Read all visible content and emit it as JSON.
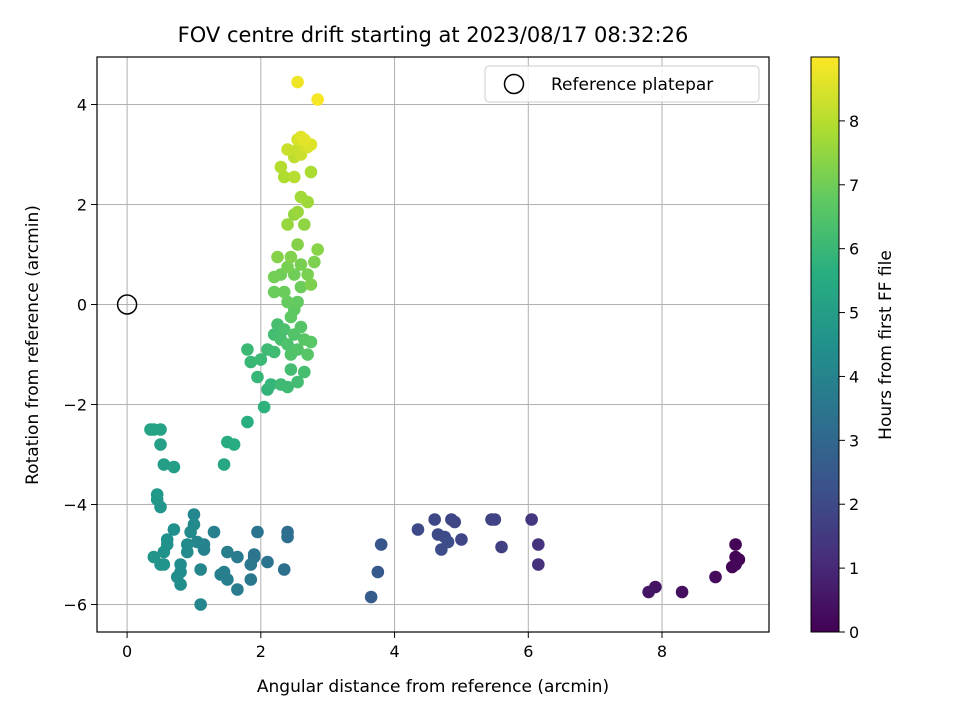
{
  "chart_data": {
    "type": "scatter",
    "title": "FOV centre drift starting at 2023/08/17 08:32:26",
    "xlabel": "Angular distance from reference (arcmin)",
    "ylabel": "Rotation from reference (arcmin)",
    "xlim": [
      -0.45,
      9.6
    ],
    "ylim": [
      -6.55,
      4.95
    ],
    "xticks": [
      0,
      2,
      4,
      6,
      8
    ],
    "yticks": [
      -6,
      -4,
      -2,
      0,
      2,
      4
    ],
    "grid": true,
    "legend": {
      "position": "top-right",
      "entries": [
        "Reference platepar"
      ]
    },
    "reference_point": {
      "x": 0,
      "y": 0,
      "label": "Reference platepar"
    },
    "colorbar": {
      "label": "Hours from first FF file",
      "range": [
        0,
        9
      ],
      "ticks": [
        0,
        1,
        2,
        3,
        4,
        5,
        6,
        7,
        8
      ],
      "colormap": "viridis"
    },
    "points": [
      {
        "x": 9.1,
        "y": -4.8,
        "t": 0.1
      },
      {
        "x": 9.1,
        "y": -5.05,
        "t": 0.1
      },
      {
        "x": 9.15,
        "y": -5.1,
        "t": 0.1
      },
      {
        "x": 9.05,
        "y": -5.25,
        "t": 0.1
      },
      {
        "x": 9.1,
        "y": -5.2,
        "t": 0.15
      },
      {
        "x": 8.8,
        "y": -5.45,
        "t": 0.25
      },
      {
        "x": 8.3,
        "y": -5.75,
        "t": 0.35
      },
      {
        "x": 7.9,
        "y": -5.65,
        "t": 0.45
      },
      {
        "x": 7.8,
        "y": -5.75,
        "t": 0.5
      },
      {
        "x": 6.05,
        "y": -4.3,
        "t": 1.4
      },
      {
        "x": 6.15,
        "y": -4.8,
        "t": 1.3
      },
      {
        "x": 6.15,
        "y": -5.2,
        "t": 1.25
      },
      {
        "x": 5.6,
        "y": -4.85,
        "t": 1.7
      },
      {
        "x": 5.45,
        "y": -4.3,
        "t": 1.75
      },
      {
        "x": 5.5,
        "y": -4.3,
        "t": 1.8
      },
      {
        "x": 4.85,
        "y": -4.3,
        "t": 1.9
      },
      {
        "x": 4.9,
        "y": -4.35,
        "t": 1.85
      },
      {
        "x": 4.6,
        "y": -4.3,
        "t": 1.95
      },
      {
        "x": 4.35,
        "y": -4.5,
        "t": 2.0
      },
      {
        "x": 4.65,
        "y": -4.6,
        "t": 2.0
      },
      {
        "x": 4.75,
        "y": -4.65,
        "t": 2.05
      },
      {
        "x": 4.8,
        "y": -4.75,
        "t": 2.1
      },
      {
        "x": 4.7,
        "y": -4.9,
        "t": 2.1
      },
      {
        "x": 5.0,
        "y": -4.7,
        "t": 1.9
      },
      {
        "x": 3.8,
        "y": -4.8,
        "t": 2.4
      },
      {
        "x": 3.75,
        "y": -5.35,
        "t": 2.5
      },
      {
        "x": 3.65,
        "y": -5.85,
        "t": 2.6
      },
      {
        "x": 2.4,
        "y": -4.55,
        "t": 3.2
      },
      {
        "x": 2.4,
        "y": -4.65,
        "t": 3.25
      },
      {
        "x": 2.35,
        "y": -5.3,
        "t": 3.3
      },
      {
        "x": 2.1,
        "y": -5.15,
        "t": 3.4
      },
      {
        "x": 1.9,
        "y": -5.05,
        "t": 3.5
      },
      {
        "x": 1.95,
        "y": -4.55,
        "t": 3.45
      },
      {
        "x": 1.9,
        "y": -5.0,
        "t": 3.5
      },
      {
        "x": 1.85,
        "y": -5.2,
        "t": 3.55
      },
      {
        "x": 1.85,
        "y": -5.5,
        "t": 3.6
      },
      {
        "x": 1.65,
        "y": -5.05,
        "t": 3.65
      },
      {
        "x": 1.65,
        "y": -5.7,
        "t": 3.7
      },
      {
        "x": 1.5,
        "y": -4.95,
        "t": 3.8
      },
      {
        "x": 1.45,
        "y": -5.35,
        "t": 3.85
      },
      {
        "x": 1.5,
        "y": -5.5,
        "t": 3.8
      },
      {
        "x": 1.4,
        "y": -5.4,
        "t": 3.85
      },
      {
        "x": 1.3,
        "y": -4.55,
        "t": 3.9
      },
      {
        "x": 1.15,
        "y": -4.8,
        "t": 4.0
      },
      {
        "x": 1.15,
        "y": -4.9,
        "t": 4.0
      },
      {
        "x": 1.1,
        "y": -5.3,
        "t": 4.05
      },
      {
        "x": 1.1,
        "y": -6.0,
        "t": 4.1
      },
      {
        "x": 1.05,
        "y": -4.75,
        "t": 4.1
      },
      {
        "x": 1.0,
        "y": -4.2,
        "t": 4.15
      },
      {
        "x": 1.0,
        "y": -4.4,
        "t": 4.2
      },
      {
        "x": 0.95,
        "y": -4.55,
        "t": 4.25
      },
      {
        "x": 0.9,
        "y": -4.8,
        "t": 4.3
      },
      {
        "x": 0.9,
        "y": -4.95,
        "t": 4.3
      },
      {
        "x": 0.8,
        "y": -5.2,
        "t": 4.35
      },
      {
        "x": 0.8,
        "y": -5.35,
        "t": 4.35
      },
      {
        "x": 0.75,
        "y": -5.45,
        "t": 4.4
      },
      {
        "x": 0.8,
        "y": -5.6,
        "t": 4.4
      },
      {
        "x": 0.7,
        "y": -4.5,
        "t": 4.45
      },
      {
        "x": 0.6,
        "y": -4.7,
        "t": 4.5
      },
      {
        "x": 0.6,
        "y": -4.8,
        "t": 4.5
      },
      {
        "x": 0.55,
        "y": -4.95,
        "t": 4.55
      },
      {
        "x": 0.55,
        "y": -5.2,
        "t": 4.6
      },
      {
        "x": 0.5,
        "y": -5.2,
        "t": 4.6
      },
      {
        "x": 0.4,
        "y": -5.05,
        "t": 4.65
      },
      {
        "x": 0.5,
        "y": -4.05,
        "t": 4.7
      },
      {
        "x": 0.45,
        "y": -3.9,
        "t": 4.75
      },
      {
        "x": 0.45,
        "y": -3.8,
        "t": 4.8
      },
      {
        "x": 0.7,
        "y": -3.25,
        "t": 5.0
      },
      {
        "x": 0.55,
        "y": -3.2,
        "t": 5.05
      },
      {
        "x": 0.5,
        "y": -2.8,
        "t": 5.1
      },
      {
        "x": 0.5,
        "y": -2.5,
        "t": 5.15
      },
      {
        "x": 0.4,
        "y": -2.5,
        "t": 5.2
      },
      {
        "x": 0.35,
        "y": -2.5,
        "t": 5.2
      },
      {
        "x": 1.45,
        "y": -3.2,
        "t": 5.4
      },
      {
        "x": 1.5,
        "y": -2.75,
        "t": 5.5
      },
      {
        "x": 1.6,
        "y": -2.8,
        "t": 5.55
      },
      {
        "x": 1.8,
        "y": -2.35,
        "t": 5.65
      },
      {
        "x": 2.05,
        "y": -2.05,
        "t": 5.75
      },
      {
        "x": 2.1,
        "y": -1.7,
        "t": 5.85
      },
      {
        "x": 2.15,
        "y": -1.6,
        "t": 5.9
      },
      {
        "x": 1.95,
        "y": -1.45,
        "t": 5.95
      },
      {
        "x": 1.85,
        "y": -1.15,
        "t": 6.0
      },
      {
        "x": 1.8,
        "y": -0.9,
        "t": 6.05
      },
      {
        "x": 2.0,
        "y": -1.1,
        "t": 6.05
      },
      {
        "x": 2.1,
        "y": -0.9,
        "t": 6.1
      },
      {
        "x": 2.2,
        "y": -0.95,
        "t": 6.15
      },
      {
        "x": 2.3,
        "y": -1.6,
        "t": 6.1
      },
      {
        "x": 2.4,
        "y": -1.65,
        "t": 6.1
      },
      {
        "x": 2.55,
        "y": -1.55,
        "t": 6.2
      },
      {
        "x": 2.45,
        "y": -1.3,
        "t": 6.2
      },
      {
        "x": 2.65,
        "y": -1.35,
        "t": 6.25
      },
      {
        "x": 2.2,
        "y": -0.6,
        "t": 6.2
      },
      {
        "x": 2.25,
        "y": -0.4,
        "t": 6.25
      },
      {
        "x": 2.3,
        "y": -0.7,
        "t": 6.3
      },
      {
        "x": 2.35,
        "y": -0.5,
        "t": 6.35
      },
      {
        "x": 2.4,
        "y": -0.8,
        "t": 6.4
      },
      {
        "x": 2.45,
        "y": -1.0,
        "t": 6.45
      },
      {
        "x": 2.5,
        "y": -0.6,
        "t": 6.5
      },
      {
        "x": 2.55,
        "y": -0.9,
        "t": 6.5
      },
      {
        "x": 2.6,
        "y": -0.45,
        "t": 6.55
      },
      {
        "x": 2.65,
        "y": -0.7,
        "t": 6.6
      },
      {
        "x": 2.7,
        "y": -1.0,
        "t": 6.6
      },
      {
        "x": 2.75,
        "y": -0.75,
        "t": 6.65
      },
      {
        "x": 2.45,
        "y": -0.25,
        "t": 6.7
      },
      {
        "x": 2.5,
        "y": -0.1,
        "t": 6.75
      },
      {
        "x": 2.55,
        "y": 0.05,
        "t": 6.8
      },
      {
        "x": 2.4,
        "y": 0.05,
        "t": 6.85
      },
      {
        "x": 2.35,
        "y": 0.25,
        "t": 6.9
      },
      {
        "x": 2.2,
        "y": 0.25,
        "t": 6.9
      },
      {
        "x": 2.6,
        "y": 0.35,
        "t": 6.95
      },
      {
        "x": 2.5,
        "y": 0.6,
        "t": 7.0
      },
      {
        "x": 2.3,
        "y": 0.6,
        "t": 7.0
      },
      {
        "x": 2.2,
        "y": 0.55,
        "t": 7.05
      },
      {
        "x": 2.4,
        "y": 0.75,
        "t": 7.1
      },
      {
        "x": 2.6,
        "y": 0.8,
        "t": 7.1
      },
      {
        "x": 2.7,
        "y": 0.6,
        "t": 7.15
      },
      {
        "x": 2.8,
        "y": 0.85,
        "t": 7.2
      },
      {
        "x": 2.75,
        "y": 0.4,
        "t": 7.2
      },
      {
        "x": 2.45,
        "y": 0.95,
        "t": 7.25
      },
      {
        "x": 2.55,
        "y": 1.2,
        "t": 7.3
      },
      {
        "x": 2.25,
        "y": 0.95,
        "t": 7.3
      },
      {
        "x": 2.85,
        "y": 1.1,
        "t": 7.35
      },
      {
        "x": 2.65,
        "y": 1.6,
        "t": 7.45
      },
      {
        "x": 2.5,
        "y": 1.8,
        "t": 7.5
      },
      {
        "x": 2.4,
        "y": 1.6,
        "t": 7.55
      },
      {
        "x": 2.55,
        "y": 1.85,
        "t": 7.6
      },
      {
        "x": 2.7,
        "y": 2.05,
        "t": 7.65
      },
      {
        "x": 2.6,
        "y": 2.15,
        "t": 7.7
      },
      {
        "x": 2.75,
        "y": 2.65,
        "t": 7.85
      },
      {
        "x": 2.35,
        "y": 2.55,
        "t": 7.9
      },
      {
        "x": 2.3,
        "y": 2.75,
        "t": 7.95
      },
      {
        "x": 2.5,
        "y": 2.55,
        "t": 8.0
      },
      {
        "x": 2.5,
        "y": 2.95,
        "t": 8.1
      },
      {
        "x": 2.55,
        "y": 3.1,
        "t": 8.2
      },
      {
        "x": 2.4,
        "y": 3.1,
        "t": 8.25
      },
      {
        "x": 2.6,
        "y": 3.0,
        "t": 8.3
      },
      {
        "x": 2.65,
        "y": 3.2,
        "t": 8.4
      },
      {
        "x": 2.55,
        "y": 3.3,
        "t": 8.45
      },
      {
        "x": 2.7,
        "y": 3.15,
        "t": 8.5
      },
      {
        "x": 2.75,
        "y": 3.2,
        "t": 8.55
      },
      {
        "x": 2.6,
        "y": 3.35,
        "t": 8.6
      },
      {
        "x": 2.65,
        "y": 3.3,
        "t": 8.65
      },
      {
        "x": 2.55,
        "y": 4.45,
        "t": 8.8
      },
      {
        "x": 2.85,
        "y": 4.1,
        "t": 8.9
      }
    ]
  }
}
